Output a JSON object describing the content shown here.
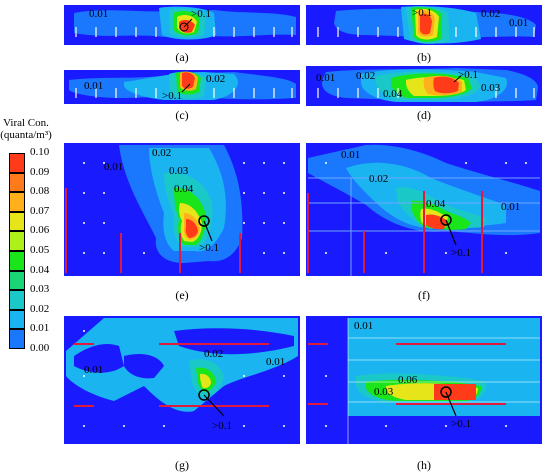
{
  "colorbar": {
    "title_line1": "Viral Con.",
    "title_line2": "(quanta/m³)",
    "ticks": [
      "0.10",
      "0.09",
      "0.08",
      "0.07",
      "0.06",
      "0.05",
      "0.04",
      "0.03",
      "0.02",
      "0.01",
      "0.00"
    ],
    "colors": [
      "#ff3b1a",
      "#ff7a1a",
      "#ffb01a",
      "#e5e51a",
      "#b0f01a",
      "#1ae51a",
      "#1ad478",
      "#1ac8c8",
      "#1ab4f0",
      "#1a78ff",
      "#1a1aff"
    ]
  },
  "panels": {
    "a": {
      "label": "(a)",
      "annotations": [
        "0.01",
        ">0.1"
      ]
    },
    "b": {
      "label": "(b)",
      "annotations": [
        ">0.1",
        "0.02",
        "0.01"
      ]
    },
    "c": {
      "label": "(c)",
      "annotations": [
        "0.01",
        "0.02",
        ">0.1"
      ]
    },
    "d": {
      "label": "(d)",
      "annotations": [
        "0.01",
        "0.02",
        "0.04",
        ">0.1",
        "0.03"
      ]
    },
    "e": {
      "label": "(e)",
      "annotations": [
        "0.01",
        "0.02",
        "0.03",
        "0.04",
        ">0.1"
      ]
    },
    "f": {
      "label": "(f)",
      "annotations": [
        "0.01",
        "0.02",
        "0.04",
        "0.01",
        ">0.1"
      ]
    },
    "g": {
      "label": "(g)",
      "annotations": [
        "0.01",
        "0.02",
        "0.01",
        ">0.1"
      ]
    },
    "h": {
      "label": "(h)",
      "annotations": [
        "0.01",
        "0.06",
        "0.03",
        ">0.1"
      ]
    }
  }
}
